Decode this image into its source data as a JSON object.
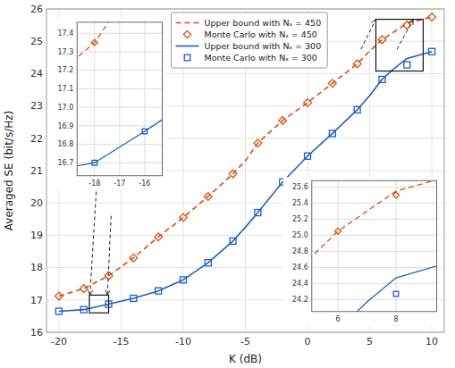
{
  "chart_data": {
    "type": "line",
    "xlabel": "K (dB)",
    "ylabel": "Averaged SE (bit/s/Hz)",
    "xlim": [
      -21,
      11
    ],
    "ylim": [
      16,
      26
    ],
    "xticks": [
      -20,
      -15,
      -10,
      -5,
      0,
      5,
      10
    ],
    "yticks": [
      16,
      17,
      18,
      19,
      20,
      21,
      22,
      23,
      24,
      25,
      26
    ],
    "grid": true,
    "legend": "upper center",
    "series": [
      {
        "name": "Upper bound with Nₛ = 450",
        "type": "line",
        "line_style": "dashed",
        "color": "#D95010",
        "x": [
          -20,
          -18,
          -16,
          -14,
          -12,
          -10,
          -8,
          -6,
          -5,
          -4,
          -2,
          0,
          2,
          4,
          5,
          6,
          7,
          8,
          10
        ],
        "values": [
          17.12,
          17.35,
          17.75,
          18.3,
          18.95,
          19.55,
          20.2,
          20.9,
          21.3,
          21.85,
          22.55,
          23.1,
          23.7,
          24.3,
          24.7,
          25.05,
          25.3,
          25.55,
          25.75
        ]
      },
      {
        "name": "Monte Carlo with Nₛ = 450",
        "type": "scatter",
        "marker": "diamond",
        "color": "#D95010",
        "x": [
          -20,
          -18,
          -16,
          -14,
          -12,
          -10,
          -8,
          -6,
          -4,
          -2,
          0,
          2,
          4,
          6,
          8,
          10
        ],
        "values": [
          17.12,
          17.35,
          17.75,
          18.3,
          18.95,
          19.55,
          20.2,
          20.9,
          21.85,
          22.55,
          23.1,
          23.7,
          24.3,
          25.05,
          25.5,
          25.75
        ]
      },
      {
        "name": "Upper bound with Nₛ = 300",
        "type": "line",
        "line_style": "solid",
        "color": "#2060C0",
        "x": [
          -20,
          -18,
          -16,
          -14,
          -12,
          -10,
          -8,
          -6,
          -5,
          -4,
          -2,
          0,
          2,
          4,
          5,
          6,
          7,
          8,
          10
        ],
        "values": [
          16.65,
          16.7,
          16.87,
          17.05,
          17.28,
          17.62,
          18.15,
          18.82,
          19.25,
          19.7,
          20.65,
          21.45,
          22.15,
          22.88,
          23.32,
          23.82,
          24.17,
          24.47,
          24.68
        ]
      },
      {
        "name": "Monte Carlo with Nₛ = 300",
        "type": "scatter",
        "marker": "square",
        "color": "#2060C0",
        "x": [
          -20,
          -18,
          -16,
          -14,
          -12,
          -10,
          -8,
          -6,
          -4,
          -2,
          0,
          2,
          4,
          6,
          8,
          10
        ],
        "values": [
          16.65,
          16.7,
          16.87,
          17.05,
          17.28,
          17.62,
          18.15,
          18.82,
          19.7,
          20.65,
          21.45,
          22.15,
          22.88,
          23.82,
          24.27,
          24.68
        ]
      }
    ],
    "insets": [
      {
        "xlim": [
          -18.7,
          -15.3
        ],
        "ylim": [
          16.63,
          17.46
        ],
        "xticks": [
          -18,
          -17,
          -16
        ],
        "yticks": [
          16.7,
          16.8,
          16.9,
          {
            "value": 17.0,
            "label": "17.0"
          },
          17.1,
          17.2,
          17.3,
          17.4
        ],
        "grid": true
      },
      {
        "xlim": [
          5.1,
          9.4
        ],
        "ylim": [
          24.05,
          25.68
        ],
        "xticks": [
          6,
          8
        ],
        "yticks": [
          24.2,
          24.4,
          24.6,
          24.8,
          {
            "value": 25.0,
            "label": "25.0"
          },
          25.2,
          25.4,
          25.6
        ],
        "grid": true
      }
    ],
    "zoom_boxes": [
      {
        "x": -17.55,
        "y": 16.6,
        "width": 1.55,
        "height": 0.55
      },
      {
        "x": 5.5,
        "y": 24.08,
        "width": 3.8,
        "height": 1.6
      }
    ],
    "arrows": [
      {
        "from": [
          -17.0,
          20.35
        ],
        "to": [
          -17.5,
          17.15
        ]
      },
      {
        "from": [
          -15.8,
          19.6
        ],
        "to": [
          -16.1,
          17.15
        ]
      },
      {
        "from": [
          4.3,
          24.75
        ],
        "to": [
          5.5,
          25.68
        ]
      },
      {
        "from": [
          7.2,
          24.75
        ],
        "to": [
          8.5,
          25.68
        ]
      }
    ]
  }
}
